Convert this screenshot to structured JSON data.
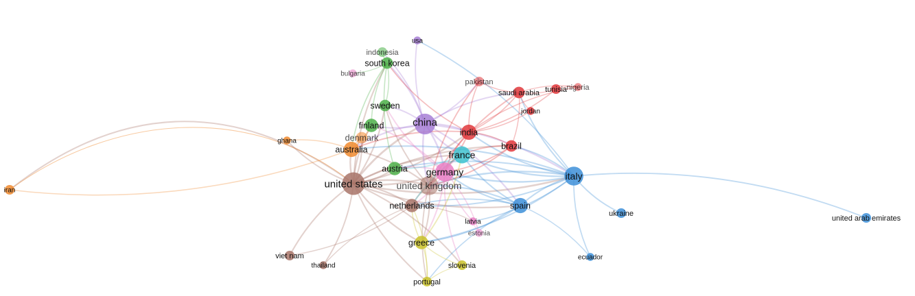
{
  "diagram": {
    "type": "co-authorship country network",
    "cluster_colors": {
      "red": "#e0383c",
      "green": "#4db04a",
      "blue": "#3d8fd8",
      "yellow": "#c9c22a",
      "purple": "#a77fd6",
      "cyan": "#3fc3d0",
      "orange": "#f0892e",
      "brown": "#a87468",
      "pink": "#e77fc4"
    },
    "nodes": [
      {
        "id": "united_states",
        "label": "united states",
        "cluster": "brown",
        "weight": 10,
        "label_size": "xl",
        "faded": false
      },
      {
        "id": "china",
        "label": "china",
        "cluster": "purple",
        "weight": 9,
        "label_size": "xl",
        "faded": false
      },
      {
        "id": "germany",
        "label": "germany",
        "cluster": "pink",
        "weight": 8,
        "label_size": "lg",
        "faded": false
      },
      {
        "id": "united_kingdom",
        "label": "united kingdom",
        "cluster": "brown",
        "weight": 8,
        "label_size": "lg",
        "faded": true
      },
      {
        "id": "italy",
        "label": "italy",
        "cluster": "blue",
        "weight": 8,
        "label_size": "lg",
        "faded": false
      },
      {
        "id": "france",
        "label": "france",
        "cluster": "cyan",
        "weight": 7,
        "label_size": "lg",
        "faded": false
      },
      {
        "id": "india",
        "label": "india",
        "cluster": "red",
        "weight": 6,
        "label_size": "md",
        "faded": false
      },
      {
        "id": "australia",
        "label": "australia",
        "cluster": "orange",
        "weight": 6,
        "label_size": "md",
        "faded": false
      },
      {
        "id": "spain",
        "label": "spain",
        "cluster": "blue",
        "weight": 6,
        "label_size": "md",
        "faded": false
      },
      {
        "id": "netherlands",
        "label": "netherlands",
        "cluster": "brown",
        "weight": 5,
        "label_size": "md",
        "faded": false
      },
      {
        "id": "austria",
        "label": "austria",
        "cluster": "green",
        "weight": 5,
        "label_size": "md",
        "faded": false
      },
      {
        "id": "finland",
        "label": "finland",
        "cluster": "green",
        "weight": 5,
        "label_size": "md",
        "faded": false
      },
      {
        "id": "sweden",
        "label": "sweden",
        "cluster": "green",
        "weight": 4,
        "label_size": "md",
        "faded": false
      },
      {
        "id": "denmark",
        "label": "denmark",
        "cluster": "orange",
        "weight": 4,
        "label_size": "md",
        "faded": true
      },
      {
        "id": "south_korea",
        "label": "south korea",
        "cluster": "green",
        "weight": 4,
        "label_size": "md",
        "faded": false
      },
      {
        "id": "greece",
        "label": "greece",
        "cluster": "yellow",
        "weight": 5,
        "label_size": "md",
        "faded": false
      },
      {
        "id": "brazil",
        "label": "brazil",
        "cluster": "red",
        "weight": 4,
        "label_size": "md",
        "faded": false
      },
      {
        "id": "saudi_arabia",
        "label": "saudi arabia",
        "cluster": "red",
        "weight": 4,
        "label_size": "sm",
        "faded": false
      },
      {
        "id": "pakistan",
        "label": "pakistan",
        "cluster": "red",
        "weight": 3,
        "label_size": "sm",
        "faded": true
      },
      {
        "id": "tunisia",
        "label": "tunisia",
        "cluster": "red",
        "weight": 3,
        "label_size": "sm",
        "faded": false
      },
      {
        "id": "nigeria",
        "label": "nigeria",
        "cluster": "red",
        "weight": 2,
        "label_size": "sm",
        "faded": true
      },
      {
        "id": "jordan",
        "label": "jordan",
        "cluster": "red",
        "weight": 2,
        "label_size": "xs",
        "faded": false
      },
      {
        "id": "indonesia",
        "label": "indonesia",
        "cluster": "green",
        "weight": 3,
        "label_size": "sm",
        "faded": true
      },
      {
        "id": "bulgaria",
        "label": "bulgaria",
        "cluster": "pink",
        "weight": 2,
        "label_size": "xs",
        "faded": true
      },
      {
        "id": "usa",
        "label": "usa",
        "cluster": "purple",
        "weight": 2,
        "label_size": "xs",
        "faded": false
      },
      {
        "id": "ghana",
        "label": "ghana",
        "cluster": "orange",
        "weight": 2,
        "label_size": "xs",
        "faded": false
      },
      {
        "id": "iran",
        "label": "iran",
        "cluster": "orange",
        "weight": 3,
        "label_size": "xs",
        "faded": false
      },
      {
        "id": "ukraine",
        "label": "ukraine",
        "cluster": "blue",
        "weight": 3,
        "label_size": "sm",
        "faded": false
      },
      {
        "id": "united_arab_emirates",
        "label": "united arab emirates",
        "cluster": "blue",
        "weight": 3,
        "label_size": "sm",
        "faded": false
      },
      {
        "id": "ecuador",
        "label": "ecuador",
        "cluster": "blue",
        "weight": 2,
        "label_size": "xs",
        "faded": false
      },
      {
        "id": "latvia",
        "label": "latvia",
        "cluster": "pink",
        "weight": 2,
        "label_size": "xs",
        "faded": false
      },
      {
        "id": "estonia",
        "label": "estonia",
        "cluster": "pink",
        "weight": 2,
        "label_size": "xs",
        "faded": true
      },
      {
        "id": "slovenia",
        "label": "slovenia",
        "cluster": "yellow",
        "weight": 3,
        "label_size": "sm",
        "faded": false
      },
      {
        "id": "portugal",
        "label": "portugal",
        "cluster": "yellow",
        "weight": 3,
        "label_size": "sm",
        "faded": false
      },
      {
        "id": "viet_nam",
        "label": "viet nam",
        "cluster": "brown",
        "weight": 3,
        "label_size": "sm",
        "faded": false
      },
      {
        "id": "thailand",
        "label": "thailand",
        "cluster": "brown",
        "weight": 2,
        "label_size": "xs",
        "faded": false
      }
    ],
    "edges": [
      [
        "united_states",
        "china"
      ],
      [
        "united_states",
        "germany"
      ],
      [
        "united_states",
        "united_kingdom"
      ],
      [
        "united_states",
        "italy"
      ],
      [
        "united_states",
        "france"
      ],
      [
        "united_states",
        "india"
      ],
      [
        "united_states",
        "australia"
      ],
      [
        "united_states",
        "spain"
      ],
      [
        "united_states",
        "netherlands"
      ],
      [
        "united_states",
        "austria"
      ],
      [
        "united_states",
        "finland"
      ],
      [
        "united_states",
        "sweden"
      ],
      [
        "united_states",
        "south_korea"
      ],
      [
        "united_states",
        "greece"
      ],
      [
        "united_states",
        "brazil"
      ],
      [
        "united_states",
        "iran"
      ],
      [
        "united_states",
        "ghana"
      ],
      [
        "united_states",
        "viet_nam"
      ],
      [
        "united_states",
        "thailand"
      ],
      [
        "united_states",
        "portugal"
      ],
      [
        "united_states",
        "slovenia"
      ],
      [
        "united_states",
        "denmark"
      ],
      [
        "china",
        "germany"
      ],
      [
        "china",
        "united_kingdom"
      ],
      [
        "china",
        "italy"
      ],
      [
        "china",
        "france"
      ],
      [
        "china",
        "india"
      ],
      [
        "china",
        "australia"
      ],
      [
        "china",
        "spain"
      ],
      [
        "china",
        "south_korea"
      ],
      [
        "china",
        "usa"
      ],
      [
        "china",
        "pakistan"
      ],
      [
        "china",
        "saudi_arabia"
      ],
      [
        "china",
        "sweden"
      ],
      [
        "china",
        "finland"
      ],
      [
        "china",
        "indonesia"
      ],
      [
        "italy",
        "germany"
      ],
      [
        "italy",
        "united_kingdom"
      ],
      [
        "italy",
        "france"
      ],
      [
        "italy",
        "spain"
      ],
      [
        "italy",
        "india"
      ],
      [
        "italy",
        "brazil"
      ],
      [
        "italy",
        "netherlands"
      ],
      [
        "italy",
        "austria"
      ],
      [
        "italy",
        "greece"
      ],
      [
        "italy",
        "ukraine"
      ],
      [
        "italy",
        "united_arab_emirates"
      ],
      [
        "italy",
        "ecuador"
      ],
      [
        "italy",
        "latvia"
      ],
      [
        "italy",
        "usa"
      ],
      [
        "italy",
        "saudi_arabia"
      ],
      [
        "italy",
        "australia"
      ],
      [
        "spain",
        "germany"
      ],
      [
        "spain",
        "united_kingdom"
      ],
      [
        "spain",
        "france"
      ],
      [
        "spain",
        "netherlands"
      ],
      [
        "spain",
        "ecuador"
      ],
      [
        "spain",
        "portugal"
      ],
      [
        "spain",
        "greece"
      ],
      [
        "india",
        "saudi_arabia"
      ],
      [
        "india",
        "pakistan"
      ],
      [
        "india",
        "tunisia"
      ],
      [
        "india",
        "nigeria"
      ],
      [
        "india",
        "jordan"
      ],
      [
        "india",
        "brazil"
      ],
      [
        "india",
        "germany"
      ],
      [
        "india",
        "united_kingdom"
      ],
      [
        "india",
        "australia"
      ],
      [
        "india",
        "south_korea"
      ],
      [
        "saudi_arabia",
        "tunisia"
      ],
      [
        "saudi_arabia",
        "pakistan"
      ],
      [
        "saudi_arabia",
        "jordan"
      ],
      [
        "saudi_arabia",
        "nigeria"
      ],
      [
        "saudi_arabia",
        "united_kingdom"
      ],
      [
        "tunisia",
        "nigeria"
      ],
      [
        "pakistan",
        "united_kingdom"
      ],
      [
        "brazil",
        "germany"
      ],
      [
        "brazil",
        "france"
      ],
      [
        "brazil",
        "united_kingdom"
      ],
      [
        "brazil",
        "saudi_arabia"
      ],
      [
        "germany",
        "france"
      ],
      [
        "germany",
        "united_kingdom"
      ],
      [
        "germany",
        "netherlands"
      ],
      [
        "germany",
        "austria"
      ],
      [
        "germany",
        "greece"
      ],
      [
        "germany",
        "latvia"
      ],
      [
        "germany",
        "estonia"
      ],
      [
        "germany",
        "slovenia"
      ],
      [
        "germany",
        "sweden"
      ],
      [
        "germany",
        "finland"
      ],
      [
        "united_kingdom",
        "france"
      ],
      [
        "united_kingdom",
        "netherlands"
      ],
      [
        "united_kingdom",
        "greece"
      ],
      [
        "united_kingdom",
        "australia"
      ],
      [
        "united_kingdom",
        "sweden"
      ],
      [
        "united_kingdom",
        "portugal"
      ],
      [
        "greece",
        "portugal"
      ],
      [
        "greece",
        "slovenia"
      ],
      [
        "greece",
        "netherlands"
      ],
      [
        "greece",
        "france"
      ],
      [
        "portugal",
        "slovenia"
      ],
      [
        "portugal",
        "netherlands"
      ],
      [
        "south_korea",
        "sweden"
      ],
      [
        "south_korea",
        "finland"
      ],
      [
        "south_korea",
        "indonesia"
      ],
      [
        "south_korea",
        "austria"
      ],
      [
        "south_korea",
        "bulgaria"
      ],
      [
        "south_korea",
        "australia"
      ],
      [
        "australia",
        "iran"
      ],
      [
        "australia",
        "ghana"
      ],
      [
        "australia",
        "denmark"
      ],
      [
        "australia",
        "finland"
      ],
      [
        "netherlands",
        "viet_nam"
      ],
      [
        "netherlands",
        "thailand"
      ],
      [
        "netherlands",
        "latvia"
      ],
      [
        "latvia",
        "estonia"
      ],
      [
        "france",
        "austria"
      ],
      [
        "france",
        "netherlands"
      ]
    ]
  }
}
